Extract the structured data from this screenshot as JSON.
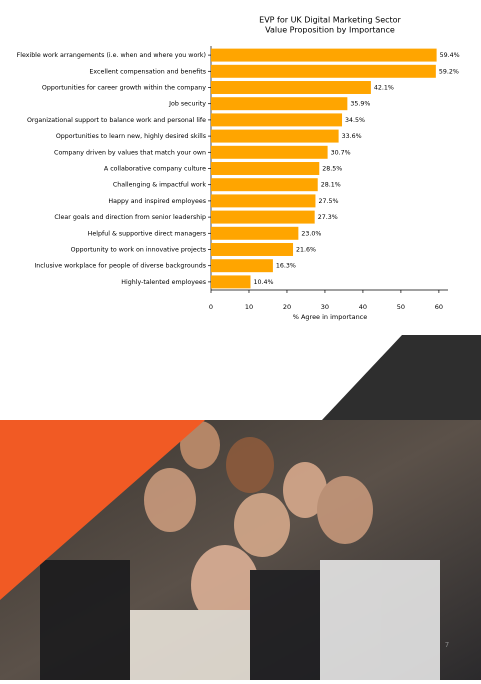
{
  "chart_data": {
    "type": "barh",
    "title": "EVP for UK Digital Marketing Sector",
    "subtitle": "Value Proposition by Importance",
    "categories": [
      "Flexible work arrangements (i.e. when and where you work)",
      "Excellent compensation and benefits",
      "Opportunities for career growth within the company",
      "Job security",
      "Organizational support to balance work and personal life",
      "Opportunities to learn new, highly desired skills",
      "Company driven by values that match your own",
      "A collaborative company culture",
      "Challenging & impactful work",
      "Happy and inspired employees",
      "Clear goals and direction from senior leadership",
      "Helpful & supportive direct managers",
      "Opportunity to work on innovative projects",
      "Inclusive workplace for people of diverse backgrounds",
      "Highly-talented employees"
    ],
    "values": [
      59.4,
      59.2,
      42.1,
      35.9,
      34.5,
      33.6,
      30.7,
      28.5,
      28.1,
      27.5,
      27.3,
      23.0,
      21.6,
      16.3,
      10.4
    ],
    "value_labels": [
      "59.4%",
      "59.2%",
      "42.1%",
      "35.9%",
      "34.5%",
      "33.6%",
      "30.7%",
      "28.5%",
      "28.1%",
      "27.5%",
      "27.3%",
      "23.0%",
      "21.6%",
      "16.3%",
      "10.4%"
    ],
    "color": "#ffa500",
    "xlabel": "% Agree in importance",
    "xlim": [
      0,
      62.4
    ],
    "xticks": [
      0,
      10,
      20,
      30,
      40,
      50,
      60
    ]
  },
  "page_number": "7"
}
